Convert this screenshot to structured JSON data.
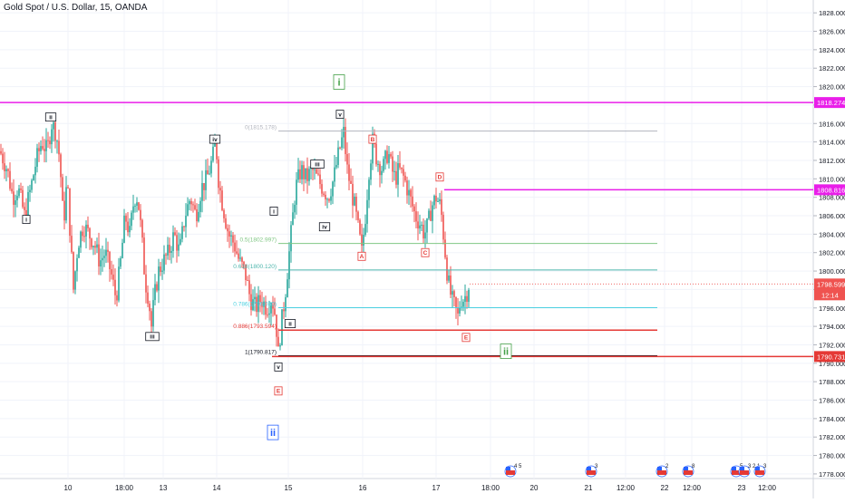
{
  "title": "Gold Spot / U.S. Dollar, 15, OANDA",
  "colors": {
    "up": "#26a69a",
    "down": "#ef5350",
    "magenta": "#e91ee9",
    "red": "#e53935",
    "green": "#43a047",
    "black": "#131722",
    "blue": "#2962ff",
    "fib_grey": "#b2b5be",
    "fib_green": "#81c784",
    "fib_teal": "#4db6ac",
    "fib_cyan": "#4dd0e1",
    "grid": "#f0f3fa"
  },
  "chart_data": {
    "type": "candlestick",
    "symbol": "Gold Spot / U.S. Dollar",
    "interval": "15",
    "exchange": "OANDA",
    "ylim": [
      1777.5,
      1829.0
    ],
    "y_ticks": [
      "1778.000",
      "1780.000",
      "1782.000",
      "1784.000",
      "1786.000",
      "1788.000",
      "1790.000",
      "1792.000",
      "1794.000",
      "1796.000",
      "1798.000",
      "1800.000",
      "1802.000",
      "1804.000",
      "1806.000",
      "1808.000",
      "1810.000",
      "1812.000",
      "1814.000",
      "1816.000",
      "1818.000",
      "1820.000",
      "1822.000",
      "1824.000",
      "1826.000",
      "1828.000"
    ],
    "x_ticks": [
      {
        "label": "10",
        "t": 75
      },
      {
        "label": "18:00",
        "t": 137
      },
      {
        "label": "13",
        "t": 180
      },
      {
        "label": "14",
        "t": 239
      },
      {
        "label": "15",
        "t": 318
      },
      {
        "label": "16",
        "t": 400
      },
      {
        "label": "17",
        "t": 481
      },
      {
        "label": "18:00",
        "t": 541
      },
      {
        "label": "20",
        "t": 589
      },
      {
        "label": "21",
        "t": 649
      },
      {
        "label": "12:00",
        "t": 690
      },
      {
        "label": "22",
        "t": 733
      },
      {
        "label": "12:00",
        "t": 763
      },
      {
        "label": "23",
        "t": 818
      },
      {
        "label": "12:00",
        "t": 846
      }
    ],
    "price_path": [
      [
        0,
        1813
      ],
      [
        8,
        1811
      ],
      [
        14,
        1808
      ],
      [
        20,
        1809
      ],
      [
        27,
        1806
      ],
      [
        34,
        1809
      ],
      [
        40,
        1812
      ],
      [
        46,
        1814
      ],
      [
        52,
        1813
      ],
      [
        57,
        1816
      ],
      [
        62,
        1815
      ],
      [
        66,
        1812
      ],
      [
        70,
        1805
      ],
      [
        74,
        1810
      ],
      [
        78,
        1803
      ],
      [
        81,
        1798
      ],
      [
        86,
        1803
      ],
      [
        92,
        1805
      ],
      [
        98,
        1804
      ],
      [
        104,
        1803
      ],
      [
        110,
        1801
      ],
      [
        116,
        1802
      ],
      [
        122,
        1800
      ],
      [
        128,
        1797
      ],
      [
        133,
        1801
      ],
      [
        138,
        1806
      ],
      [
        143,
        1804
      ],
      [
        148,
        1808
      ],
      [
        152,
        1808
      ],
      [
        156,
        1804
      ],
      [
        160,
        1799
      ],
      [
        164,
        1797
      ],
      [
        167,
        1794
      ],
      [
        170,
        1797
      ],
      [
        175,
        1800
      ],
      [
        180,
        1801
      ],
      [
        186,
        1802
      ],
      [
        192,
        1804
      ],
      [
        198,
        1802
      ],
      [
        204,
        1806
      ],
      [
        210,
        1808
      ],
      [
        216,
        1806
      ],
      [
        222,
        1809
      ],
      [
        228,
        1810
      ],
      [
        234,
        1812
      ],
      [
        238,
        1814
      ],
      [
        241,
        1810
      ],
      [
        244,
        1808
      ],
      [
        248,
        1806
      ],
      [
        252,
        1804
      ],
      [
        258,
        1803
      ],
      [
        264,
        1801
      ],
      [
        270,
        1800
      ],
      [
        276,
        1797
      ],
      [
        282,
        1796
      ],
      [
        288,
        1797
      ],
      [
        294,
        1796
      ],
      [
        300,
        1797
      ],
      [
        304,
        1795
      ],
      [
        307,
        1791
      ],
      [
        310,
        1794
      ],
      [
        314,
        1797
      ],
      [
        318,
        1801
      ],
      [
        322,
        1805
      ],
      [
        326,
        1809
      ],
      [
        332,
        1811
      ],
      [
        338,
        1810
      ],
      [
        344,
        1811
      ],
      [
        350,
        1810
      ],
      [
        356,
        1809
      ],
      [
        362,
        1808
      ],
      [
        368,
        1810
      ],
      [
        374,
        1813
      ],
      [
        379,
        1815
      ],
      [
        383,
        1811
      ],
      [
        387,
        1809
      ],
      [
        391,
        1807
      ],
      [
        396,
        1804
      ],
      [
        399,
        1802
      ],
      [
        403,
        1806
      ],
      [
        407,
        1811
      ],
      [
        411,
        1814
      ],
      [
        416,
        1812
      ],
      [
        422,
        1811
      ],
      [
        428,
        1813
      ],
      [
        432,
        1811
      ],
      [
        436,
        1810
      ],
      [
        440,
        1811
      ],
      [
        446,
        1810
      ],
      [
        452,
        1808
      ],
      [
        458,
        1806
      ],
      [
        464,
        1805
      ],
      [
        468,
        1804
      ],
      [
        472,
        1805
      ],
      [
        476,
        1807
      ],
      [
        481,
        1808
      ],
      [
        486,
        1807
      ],
      [
        490,
        1803
      ],
      [
        494,
        1799
      ],
      [
        498,
        1797
      ],
      [
        502,
        1796
      ],
      [
        505,
        1795
      ],
      [
        508,
        1797
      ],
      [
        512,
        1797
      ],
      [
        516,
        1798
      ],
      [
        518,
        1799
      ]
    ],
    "horizontal_lines": [
      {
        "name": "resistance-1818",
        "price": 1818.274,
        "label": "1818.274",
        "color": "magenta",
        "x_start": 0
      },
      {
        "name": "resistance-1808",
        "price": 1808.816,
        "label": "1808.816",
        "color": "magenta",
        "x_start": 490
      },
      {
        "name": "support-1790",
        "price": 1790.731,
        "label": "1790.731",
        "color": "red",
        "x_start": 300
      }
    ],
    "last_price": {
      "price": 1798.599,
      "label": "1798.599",
      "countdown": "12:14"
    },
    "fibonacci": [
      {
        "label": "0(1815.178)",
        "price": 1815.178,
        "color": "fib_grey"
      },
      {
        "label": "0.5(1802.997)",
        "price": 1802.997,
        "color": "fib_green"
      },
      {
        "label": "0.618(1800.120)",
        "price": 1800.12,
        "color": "fib_teal"
      },
      {
        "label": "0.786(1796.030)",
        "price": 1796.03,
        "color": "fib_cyan"
      },
      {
        "label": "0.886(1793.594)",
        "price": 1793.594,
        "color": "red"
      },
      {
        "label": "1(1790.817)",
        "price": 1790.817,
        "color": "black"
      }
    ],
    "fib_x_range": [
      307,
      725
    ],
    "wave_labels": [
      {
        "text": "ii",
        "t": 56,
        "price": 1816.7,
        "color": "black",
        "size": "s"
      },
      {
        "text": "i",
        "t": 29,
        "price": 1805.6,
        "color": "black",
        "size": "s"
      },
      {
        "text": "iii",
        "t": 168,
        "price": 1792.9,
        "color": "black",
        "size": "s"
      },
      {
        "text": "iv",
        "t": 237,
        "price": 1814.3,
        "color": "black",
        "size": "s"
      },
      {
        "text": "i",
        "t": 302,
        "price": 1806.5,
        "color": "black",
        "size": "s"
      },
      {
        "text": "ii",
        "t": 320,
        "price": 1794.3,
        "color": "black",
        "size": "s"
      },
      {
        "text": "iii",
        "t": 350,
        "price": 1811.6,
        "color": "black",
        "size": "s"
      },
      {
        "text": "iv",
        "t": 358,
        "price": 1804.8,
        "color": "black",
        "size": "s"
      },
      {
        "text": "v",
        "t": 375,
        "price": 1817.0,
        "color": "black",
        "size": "s"
      },
      {
        "text": "v",
        "t": 307,
        "price": 1789.6,
        "color": "black",
        "size": "s"
      },
      {
        "text": "i",
        "t": 374,
        "price": 1820.5,
        "color": "green",
        "size": "l"
      },
      {
        "text": "ii",
        "t": 558,
        "price": 1791.3,
        "color": "green",
        "size": "l"
      },
      {
        "text": "ii",
        "t": 301,
        "price": 1782.5,
        "color": "blue",
        "size": "l"
      },
      {
        "text": "A",
        "t": 399,
        "price": 1801.6,
        "color": "red",
        "size": "s"
      },
      {
        "text": "B",
        "t": 411,
        "price": 1814.3,
        "color": "red",
        "size": "s"
      },
      {
        "text": "C",
        "t": 469,
        "price": 1802.0,
        "color": "red",
        "size": "s"
      },
      {
        "text": "D",
        "t": 485,
        "price": 1810.2,
        "color": "red",
        "size": "s"
      },
      {
        "text": "E",
        "t": 514,
        "price": 1792.8,
        "color": "red",
        "size": "s"
      },
      {
        "text": "E",
        "t": 307,
        "price": 1787.0,
        "color": "red",
        "size": "s"
      }
    ],
    "events": [
      {
        "t": 563,
        "label": "4 5"
      },
      {
        "t": 652,
        "label": "3"
      },
      {
        "t": 730,
        "label": "2"
      },
      {
        "t": 759,
        "label": "8"
      },
      {
        "t": 812,
        "label": "5"
      },
      {
        "t": 821,
        "label": "3 2 1"
      },
      {
        "t": 838,
        "label": "3"
      }
    ]
  }
}
